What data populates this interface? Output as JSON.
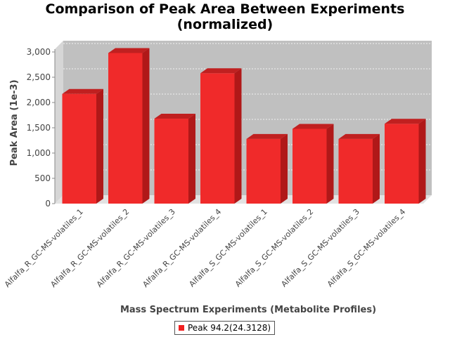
{
  "chart_data": {
    "type": "bar",
    "title_lines": [
      "Comparison of Peak Area Between Experiments",
      "(normalized)"
    ],
    "xlabel": "Mass Spectrum Experiments (Metabolite Profiles)",
    "ylabel": "Peak Area (1e-3)",
    "ylim": [
      0,
      3000
    ],
    "yticks": [
      0,
      500,
      1000,
      1500,
      2000,
      2500,
      3000
    ],
    "ytick_labels": [
      "0",
      "500",
      "1,000",
      "1,500",
      "2,000",
      "2,500",
      "3,000"
    ],
    "categories": [
      "Alfalfa_R_GC-MS-volatiles_1",
      "Alfalfa_R_GC-MS-volatiles_2",
      "Alfalfa_R_GC-MS-volatiles_3",
      "Alfalfa_R_GC-MS-volatiles_4",
      "Alfalfa_S_GC-MS-volatiles_1",
      "Alfalfa_S_GC-MS-volatiles_2",
      "Alfalfa_S_GC-MS-volatiles_3",
      "Alfalfa_S_GC-MS-volatiles_4"
    ],
    "series": [
      {
        "name": "Peak 94.2(24.3128)",
        "color": "#f02020",
        "values": [
          2170,
          2980,
          1680,
          2580,
          1280,
          1480,
          1280,
          1580
        ]
      }
    ],
    "grid": true,
    "legend": "bottom-center"
  }
}
